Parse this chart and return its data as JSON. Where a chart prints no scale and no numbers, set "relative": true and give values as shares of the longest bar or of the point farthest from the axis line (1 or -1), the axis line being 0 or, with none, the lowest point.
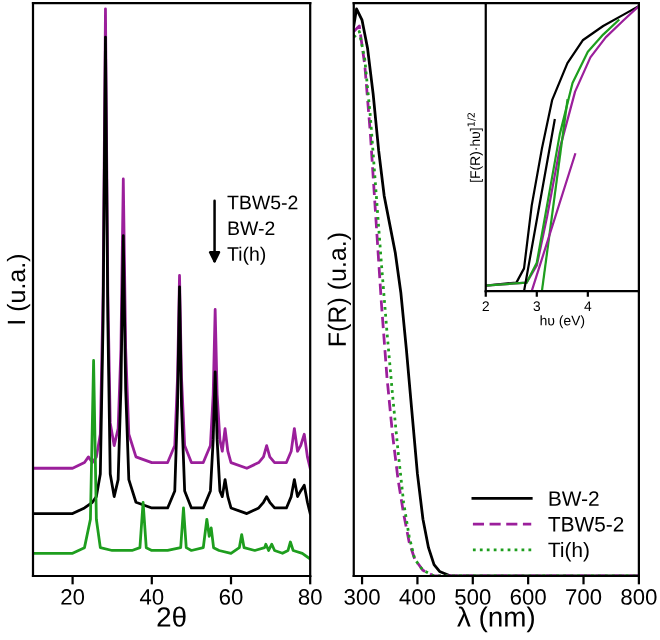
{
  "chart_data": [
    {
      "type": "line",
      "xlabel": "2θ",
      "ylabel": "I (u.a.)",
      "relative": true,
      "xlim": [
        10,
        80
      ],
      "xticks": [
        20,
        40,
        60,
        80
      ],
      "tick_labels": "x",
      "legend": false,
      "annotations": [
        "TBW5-2",
        "BW-2",
        "Ti(h)"
      ],
      "series": [
        {
          "color": "#9b1f9b",
          "line_style": "solid",
          "x": [
            10,
            15,
            20,
            23,
            24,
            25,
            26,
            27,
            27.7,
            28.3,
            28.9,
            29.5,
            30.5,
            31.5,
            32.2,
            32.8,
            33.4,
            34.2,
            36,
            40,
            44,
            45.8,
            46.5,
            47,
            47.5,
            48.3,
            50,
            53,
            54.8,
            55.5,
            56,
            56.5,
            57.2,
            57.8,
            58.5,
            59.2,
            60,
            64,
            67,
            68.2,
            69,
            69.8,
            71,
            74,
            75.2,
            76,
            76.8,
            77.6,
            78.5,
            79.3,
            80
          ],
          "values": [
            0.19,
            0.19,
            0.19,
            0.2,
            0.21,
            0.2,
            0.21,
            0.25,
            0.5,
            1.0,
            0.5,
            0.27,
            0.23,
            0.26,
            0.4,
            0.7,
            0.4,
            0.25,
            0.21,
            0.2,
            0.2,
            0.23,
            0.35,
            0.53,
            0.35,
            0.23,
            0.2,
            0.2,
            0.23,
            0.32,
            0.47,
            0.32,
            0.24,
            0.22,
            0.26,
            0.22,
            0.2,
            0.19,
            0.2,
            0.21,
            0.23,
            0.21,
            0.2,
            0.2,
            0.22,
            0.26,
            0.22,
            0.23,
            0.25,
            0.21,
            0.19
          ]
        },
        {
          "color": "#000000",
          "line_style": "solid",
          "x": [
            10,
            15,
            20,
            23,
            25,
            26,
            27,
            27.7,
            28.3,
            28.9,
            29.5,
            30.5,
            31.5,
            32.2,
            32.8,
            33.4,
            34.2,
            36,
            40,
            44,
            45.8,
            46.5,
            47,
            47.5,
            48.3,
            50,
            53,
            54.8,
            55.5,
            56,
            56.5,
            57.2,
            57.8,
            58.5,
            59.2,
            60,
            64,
            67,
            68.2,
            69,
            69.8,
            71,
            74,
            75.2,
            76,
            76.8,
            77.6,
            78.5,
            79.3,
            80
          ],
          "values": [
            0.11,
            0.11,
            0.11,
            0.12,
            0.13,
            0.14,
            0.18,
            0.45,
            0.95,
            0.45,
            0.18,
            0.14,
            0.17,
            0.33,
            0.6,
            0.33,
            0.17,
            0.13,
            0.12,
            0.12,
            0.15,
            0.3,
            0.51,
            0.3,
            0.15,
            0.12,
            0.12,
            0.15,
            0.24,
            0.36,
            0.24,
            0.15,
            0.14,
            0.17,
            0.14,
            0.12,
            0.11,
            0.12,
            0.13,
            0.14,
            0.13,
            0.12,
            0.12,
            0.14,
            0.17,
            0.14,
            0.15,
            0.16,
            0.13,
            0.11
          ]
        },
        {
          "color": "#1e9e1e",
          "line_style": "solid",
          "x": [
            10,
            15,
            20,
            23,
            24.5,
            25.3,
            26,
            27,
            30,
            35,
            37,
            37.8,
            38.6,
            40,
            44,
            47.3,
            48,
            48.7,
            50,
            53,
            53.9,
            54.5,
            55,
            55.6,
            57,
            60,
            62.1,
            62.7,
            63.3,
            66,
            68.5,
            68.8,
            69.5,
            70.3,
            71,
            73,
            74.4,
            75,
            75.7,
            78,
            80
          ],
          "values": [
            0.04,
            0.04,
            0.04,
            0.05,
            0.1,
            0.38,
            0.1,
            0.05,
            0.045,
            0.045,
            0.05,
            0.13,
            0.05,
            0.045,
            0.045,
            0.05,
            0.12,
            0.05,
            0.045,
            0.05,
            0.1,
            0.07,
            0.085,
            0.05,
            0.045,
            0.04,
            0.05,
            0.073,
            0.05,
            0.045,
            0.05,
            0.056,
            0.045,
            0.056,
            0.045,
            0.04,
            0.045,
            0.06,
            0.045,
            0.04,
            0.03
          ]
        }
      ]
    },
    {
      "type": "line",
      "xlabel": "λ (nm)",
      "ylabel": "F(R) (u.a.)",
      "relative": true,
      "xlim": [
        285,
        800
      ],
      "xticks": [
        300,
        400,
        500,
        600,
        700,
        800
      ],
      "tick_labels": "x",
      "legend": "bottom right",
      "series": [
        {
          "name": "BW-2",
          "color": "#000000",
          "line_style": "solid",
          "x": [
            285,
            290,
            300,
            310,
            320,
            330,
            340,
            350,
            360,
            370,
            380,
            390,
            400,
            410,
            420,
            430,
            440,
            460,
            500,
            800
          ],
          "values": [
            0.97,
            1.0,
            0.98,
            0.93,
            0.85,
            0.75,
            0.67,
            0.62,
            0.57,
            0.5,
            0.4,
            0.29,
            0.18,
            0.1,
            0.05,
            0.02,
            0.008,
            0,
            0,
            0
          ]
        },
        {
          "name": "TBW5-2",
          "color": "#9b1f9b",
          "line_style": "dashed",
          "x": [
            285,
            295,
            305,
            315,
            325,
            335,
            345,
            355,
            365,
            375,
            385,
            395,
            410,
            430,
            800
          ],
          "values": [
            0.96,
            0.97,
            0.9,
            0.78,
            0.63,
            0.48,
            0.35,
            0.25,
            0.17,
            0.11,
            0.06,
            0.03,
            0.01,
            0,
            0
          ]
        },
        {
          "name": "Ti(h)",
          "color": "#1e9e1e",
          "line_style": "dotted",
          "x": [
            285,
            295,
            305,
            315,
            325,
            335,
            345,
            355,
            365,
            375,
            385,
            395,
            410,
            430,
            800
          ],
          "values": [
            0.95,
            0.96,
            0.91,
            0.81,
            0.68,
            0.55,
            0.43,
            0.32,
            0.22,
            0.13,
            0.07,
            0.03,
            0.01,
            0,
            0
          ]
        }
      ]
    },
    {
      "type": "line",
      "xlabel": "hυ (eV)",
      "ylabel": "[F(R)·hυ]$^{1/2}$",
      "relative": true,
      "xlim": [
        2,
        5
      ],
      "xticks": [
        2,
        3,
        4
      ],
      "tick_labels": "x",
      "legend": false,
      "series": [
        {
          "color": "#000000",
          "line_style": "solid",
          "x": [
            2,
            2.6,
            2.75,
            2.9,
            3.1,
            3.3,
            3.6,
            3.9,
            4.3,
            4.7,
            5
          ],
          "values": [
            0.02,
            0.03,
            0.08,
            0.3,
            0.5,
            0.67,
            0.8,
            0.88,
            0.93,
            0.97,
            1.0
          ]
        },
        {
          "color": "#9b1f9b",
          "line_style": "solid",
          "x": [
            2,
            2.8,
            3.0,
            3.2,
            3.45,
            3.75,
            4.05,
            4.35,
            4.7,
            5
          ],
          "values": [
            0.02,
            0.03,
            0.09,
            0.26,
            0.5,
            0.7,
            0.82,
            0.89,
            0.95,
            1.0
          ]
        },
        {
          "color": "#1e9e1e",
          "line_style": "solid",
          "x": [
            2,
            2.8,
            3.0,
            3.2,
            3.45,
            3.7,
            4.0,
            4.3,
            4.6
          ],
          "values": [
            0.02,
            0.03,
            0.1,
            0.3,
            0.55,
            0.73,
            0.84,
            0.9,
            0.95
          ]
        },
        {
          "color": "#000000",
          "line_style": "solid",
          "x": [
            2.75,
            3.35
          ],
          "values": [
            0,
            0.6
          ]
        },
        {
          "color": "#1e9e1e",
          "line_style": "solid",
          "x": [
            3.1,
            3.6
          ],
          "values": [
            0,
            0.67
          ]
        },
        {
          "color": "#9b1f9b",
          "line_style": "solid",
          "x": [
            2.9,
            3.75
          ],
          "values": [
            0,
            0.48
          ]
        }
      ]
    }
  ]
}
